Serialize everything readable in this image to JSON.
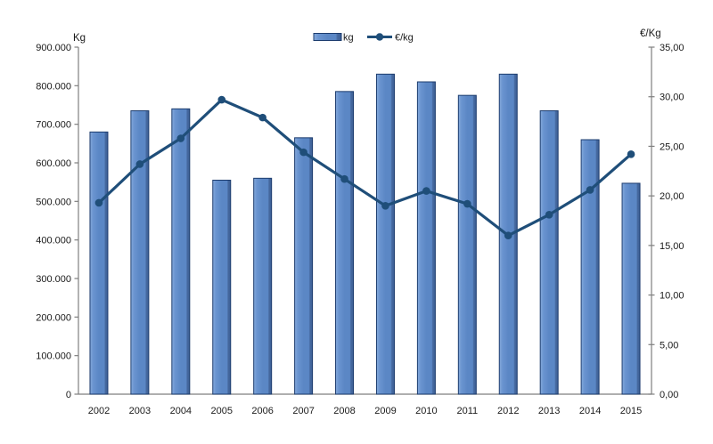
{
  "chart_data": {
    "type": "combo",
    "title": "",
    "categories": [
      "2002",
      "2003",
      "2004",
      "2005",
      "2006",
      "2007",
      "2008",
      "2009",
      "2010",
      "2011",
      "2012",
      "2013",
      "2014",
      "2015"
    ],
    "series": [
      {
        "name": "kg",
        "type": "bar",
        "axis": "left",
        "values": [
          680000,
          735000,
          740000,
          555000,
          560000,
          665000,
          785000,
          830000,
          810000,
          775000,
          830000,
          735000,
          660000,
          547000
        ]
      },
      {
        "name": "€/kg",
        "type": "line",
        "axis": "right",
        "values": [
          19.3,
          23.2,
          25.8,
          29.7,
          27.9,
          24.4,
          21.7,
          19.0,
          20.5,
          19.2,
          16.0,
          18.1,
          20.6,
          24.2
        ]
      }
    ],
    "left_axis": {
      "title": "Kg",
      "min": 0,
      "max": 900000,
      "step": 100000,
      "tick_labels": [
        "900.000",
        "800.000",
        "700.000",
        "600.000",
        "500.000",
        "400.000",
        "300.000",
        "200.000",
        "100.000",
        "0"
      ]
    },
    "right_axis": {
      "title": "€/Kg",
      "min": 0,
      "max": 35,
      "step": 5,
      "tick_labels": [
        "35,00",
        "30,00",
        "25,00",
        "20,00",
        "15,00",
        "10,00",
        "5,00",
        "0,00"
      ]
    },
    "legend": [
      {
        "label": "kg",
        "swatch": "bar"
      },
      {
        "label": "€/kg",
        "swatch": "line-marker"
      }
    ],
    "legend_position": "top-center",
    "grid": false,
    "colors": {
      "bar_fill": "#5b87c5",
      "bar_fill_light": "#85aadb",
      "bar_fill_dark": "#3c5f96",
      "bar_border": "#1c3c6e",
      "line": "#1f4e79",
      "axis": "#7f7f7f",
      "text": "#1a1a1a",
      "background": "#ffffff"
    }
  }
}
